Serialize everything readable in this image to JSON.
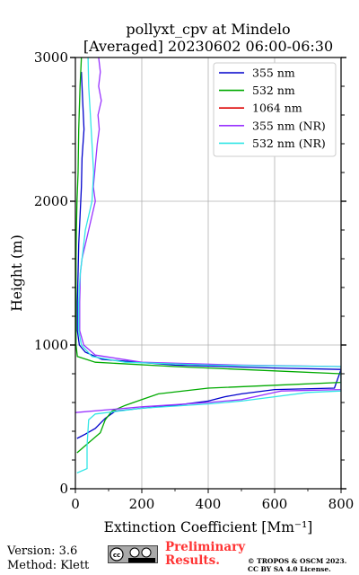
{
  "header": {
    "title_line1": "pollyxt_cpv at Mindelo",
    "title_line2": "[Averaged] 20230602 06:00-06:30"
  },
  "chart_data": {
    "type": "line",
    "xlabel": "Extinction Coefficient [Mm⁻¹]",
    "ylabel": "Height (m)",
    "xlim": [
      0,
      800
    ],
    "ylim": [
      0,
      3000
    ],
    "x_ticks": [
      0,
      200,
      400,
      600,
      800
    ],
    "y_ticks": [
      0,
      1000,
      2000,
      3000
    ],
    "grid": true,
    "legend_position": "top-right",
    "series": [
      {
        "name": "355 nm",
        "color": "#0000cc",
        "points": [
          [
            18,
            2900
          ],
          [
            22,
            2700
          ],
          [
            26,
            2500
          ],
          [
            20,
            2300
          ],
          [
            18,
            2100
          ],
          [
            14,
            1900
          ],
          [
            10,
            1700
          ],
          [
            8,
            1500
          ],
          [
            6,
            1300
          ],
          [
            6,
            1100
          ],
          [
            12,
            1000
          ],
          [
            30,
            950
          ],
          [
            80,
            900
          ],
          [
            300,
            860
          ],
          [
            600,
            840
          ],
          [
            800,
            830
          ],
          [
            780,
            700
          ],
          [
            600,
            690
          ],
          [
            500,
            660
          ],
          [
            450,
            640
          ],
          [
            400,
            610
          ],
          [
            300,
            580
          ],
          [
            200,
            560
          ],
          [
            120,
            540
          ],
          [
            90,
            490
          ],
          [
            60,
            420
          ],
          [
            30,
            380
          ],
          [
            5,
            350
          ]
        ]
      },
      {
        "name": "532 nm",
        "color": "#00aa00",
        "points": [
          [
            18,
            3000
          ],
          [
            14,
            2800
          ],
          [
            10,
            2500
          ],
          [
            8,
            2200
          ],
          [
            5,
            2000
          ],
          [
            3,
            1800
          ],
          [
            2,
            1600
          ],
          [
            2,
            1400
          ],
          [
            2,
            1200
          ],
          [
            2,
            1000
          ],
          [
            6,
            920
          ],
          [
            60,
            880
          ],
          [
            300,
            850
          ],
          [
            600,
            820
          ],
          [
            800,
            800
          ],
          [
            800,
            740
          ],
          [
            600,
            720
          ],
          [
            400,
            700
          ],
          [
            250,
            660
          ],
          [
            200,
            620
          ],
          [
            150,
            580
          ],
          [
            110,
            540
          ],
          [
            90,
            480
          ],
          [
            75,
            390
          ],
          [
            40,
            320
          ],
          [
            5,
            250
          ]
        ]
      },
      {
        "name": "1064 nm",
        "color": "#dd0000",
        "points": []
      },
      {
        "name": "355 nm (NR)",
        "color": "#9933ff",
        "points": [
          [
            70,
            3000
          ],
          [
            75,
            2900
          ],
          [
            70,
            2800
          ],
          [
            78,
            2700
          ],
          [
            68,
            2600
          ],
          [
            72,
            2500
          ],
          [
            66,
            2400
          ],
          [
            62,
            2300
          ],
          [
            58,
            2200
          ],
          [
            54,
            2100
          ],
          [
            60,
            2000
          ],
          [
            50,
            1900
          ],
          [
            40,
            1800
          ],
          [
            30,
            1700
          ],
          [
            20,
            1600
          ],
          [
            15,
            1500
          ],
          [
            14,
            1400
          ],
          [
            13,
            1300
          ],
          [
            13,
            1200
          ],
          [
            13,
            1100
          ],
          [
            25,
            1000
          ],
          [
            60,
            930
          ],
          [
            200,
            880
          ],
          [
            500,
            860
          ],
          [
            800,
            850
          ],
          [
            800,
            690
          ],
          [
            620,
            680
          ],
          [
            600,
            670
          ],
          [
            500,
            620
          ],
          [
            400,
            600
          ],
          [
            200,
            570
          ],
          [
            0,
            530
          ]
        ]
      },
      {
        "name": "532 nm (NR)",
        "color": "#33e6e6",
        "points": [
          [
            38,
            3000
          ],
          [
            40,
            2800
          ],
          [
            45,
            2600
          ],
          [
            50,
            2400
          ],
          [
            55,
            2200
          ],
          [
            50,
            2000
          ],
          [
            40,
            1900
          ],
          [
            30,
            1800
          ],
          [
            25,
            1700
          ],
          [
            20,
            1600
          ],
          [
            15,
            1500
          ],
          [
            12,
            1400
          ],
          [
            10,
            1300
          ],
          [
            10,
            1200
          ],
          [
            10,
            1100
          ],
          [
            18,
            1000
          ],
          [
            50,
            920
          ],
          [
            150,
            880
          ],
          [
            400,
            860
          ],
          [
            800,
            850
          ],
          [
            800,
            680
          ],
          [
            700,
            670
          ],
          [
            600,
            640
          ],
          [
            500,
            610
          ],
          [
            400,
            590
          ],
          [
            200,
            560
          ],
          [
            60,
            520
          ],
          [
            40,
            480
          ],
          [
            35,
            300
          ],
          [
            35,
            140
          ],
          [
            5,
            110
          ]
        ]
      }
    ]
  },
  "footer": {
    "version": "Version: 3.6",
    "method": "Method: Klett",
    "cc_badge": "cc by sa",
    "preliminary_line1": "Preliminary",
    "preliminary_line2": "Results.",
    "copyright_line1": "© TROPOS & OSCM 2023.",
    "copyright_line2": "CC BY SA 4.0 License."
  }
}
